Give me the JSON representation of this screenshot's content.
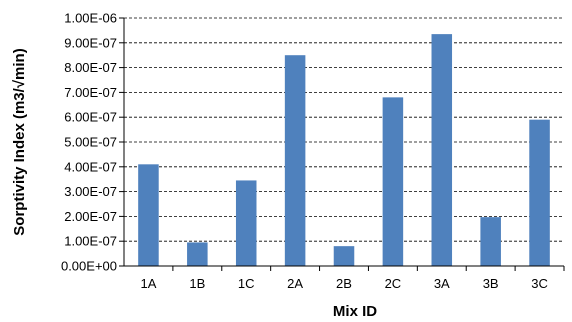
{
  "chart_data": {
    "type": "bar",
    "title": "",
    "xlabel": "Mix ID",
    "ylabel": "Sorptivity Index (m3/√min)",
    "categories": [
      "1A",
      "1B",
      "1C",
      "2A",
      "2B",
      "2C",
      "3A",
      "3B",
      "3C"
    ],
    "values": [
      4.1e-07,
      9.5e-08,
      3.45e-07,
      8.5e-07,
      8e-08,
      6.8e-07,
      9.35e-07,
      1.97e-07,
      5.9e-07
    ],
    "ylim": [
      0,
      1e-06
    ],
    "y_ticks": [
      "0.00E+00",
      "1.00E-07",
      "2.00E-07",
      "3.00E-07",
      "4.00E-07",
      "5.00E-07",
      "6.00E-07",
      "7.00E-07",
      "8.00E-07",
      "9.00E-07",
      "1.00E-06"
    ],
    "grid": "horizontal-dashed",
    "legend": "none",
    "bar_color": "#4f81bd"
  }
}
